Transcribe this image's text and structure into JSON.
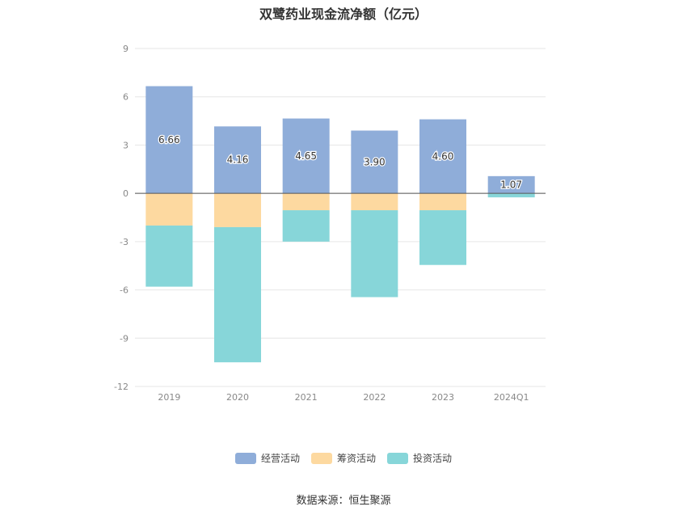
{
  "title": "双鹭药业现金流净额（亿元）",
  "source": "数据来源：恒生聚源",
  "chart_data": {
    "type": "bar",
    "stacked": true,
    "categories": [
      "2019",
      "2020",
      "2021",
      "2022",
      "2023",
      "2024Q1"
    ],
    "ylim": [
      -12,
      9
    ],
    "yticks": [
      9,
      6,
      3,
      0,
      -3,
      -6,
      -9,
      -12
    ],
    "grid": true,
    "legend_position": "bottom",
    "series": [
      {
        "name": "经营活动",
        "color": "#8fadd9",
        "values": [
          6.66,
          4.16,
          4.65,
          3.9,
          4.6,
          1.07
        ],
        "labels": [
          "6.66",
          "4.16",
          "4.65",
          "3.90",
          "4.60",
          "1.07"
        ]
      },
      {
        "name": "筹资活动",
        "color": "#fdd9a0",
        "values": [
          -2.0,
          -2.1,
          -1.05,
          -1.05,
          -1.05,
          0.0
        ]
      },
      {
        "name": "投资活动",
        "color": "#87d6d9",
        "values": [
          -3.8,
          -8.4,
          -1.95,
          -5.4,
          -3.4,
          -0.25
        ]
      }
    ]
  }
}
